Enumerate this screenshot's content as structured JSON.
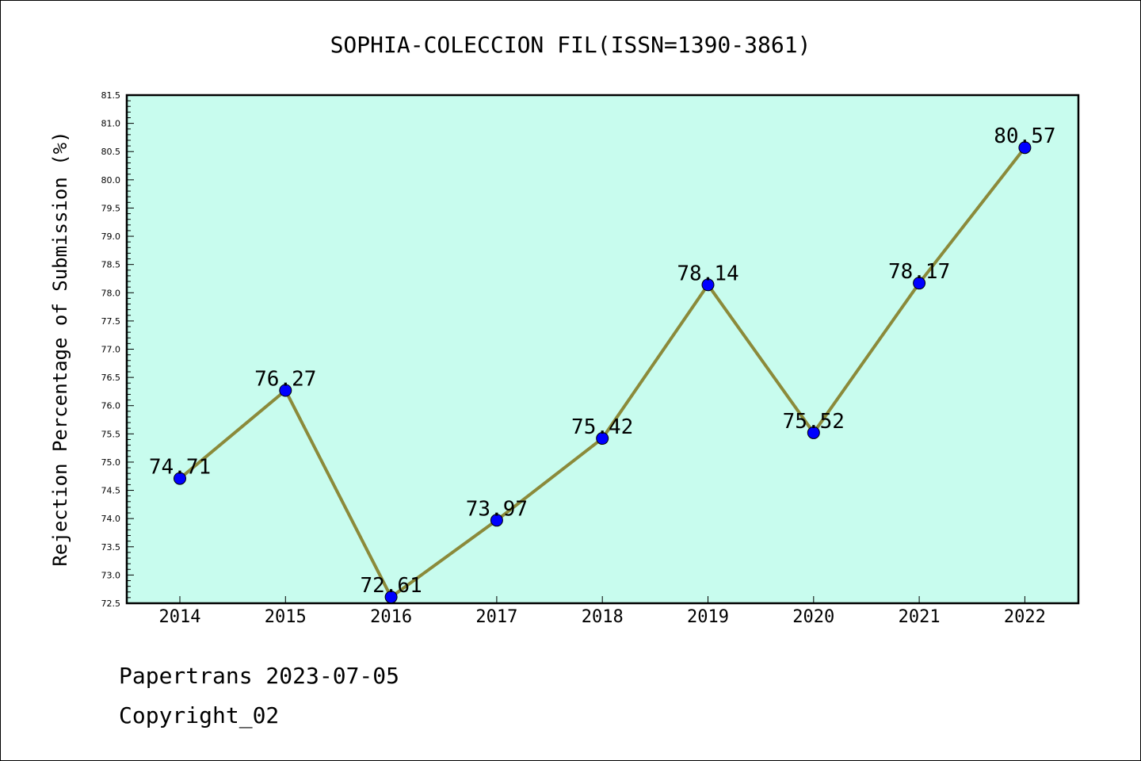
{
  "chart_data": {
    "type": "line",
    "title": "SOPHIA-COLECCION FIL(ISSN=1390-3861)",
    "xlabel": "",
    "ylabel": "Rejection Percentage of Submission (%)",
    "categories": [
      "2014",
      "2015",
      "2016",
      "2017",
      "2018",
      "2019",
      "2020",
      "2021",
      "2022"
    ],
    "values": [
      74.71,
      76.27,
      72.61,
      73.97,
      75.42,
      78.14,
      75.52,
      78.17,
      80.57
    ],
    "data_labels": [
      "74.71",
      "76.27",
      "72.61",
      "73.97",
      "75.42",
      "78.14",
      "75.52",
      "78.17",
      "80.57"
    ],
    "ylim": [
      72.5,
      81.5
    ],
    "yticks": [
      "72.5",
      "73.0",
      "73.5",
      "74.0",
      "74.5",
      "75.0",
      "75.5",
      "76.0",
      "76.5",
      "77.0",
      "77.5",
      "78.0",
      "78.5",
      "79.0",
      "79.5",
      "80.0",
      "80.5",
      "81.0",
      "81.5"
    ],
    "grid": false,
    "colors": {
      "plot_background": "#c8fcee",
      "line": "#8b8a3a",
      "marker": "#0000ff"
    }
  },
  "footer": {
    "line1": "Papertrans 2023-07-05",
    "line2": "Copyright_02"
  }
}
